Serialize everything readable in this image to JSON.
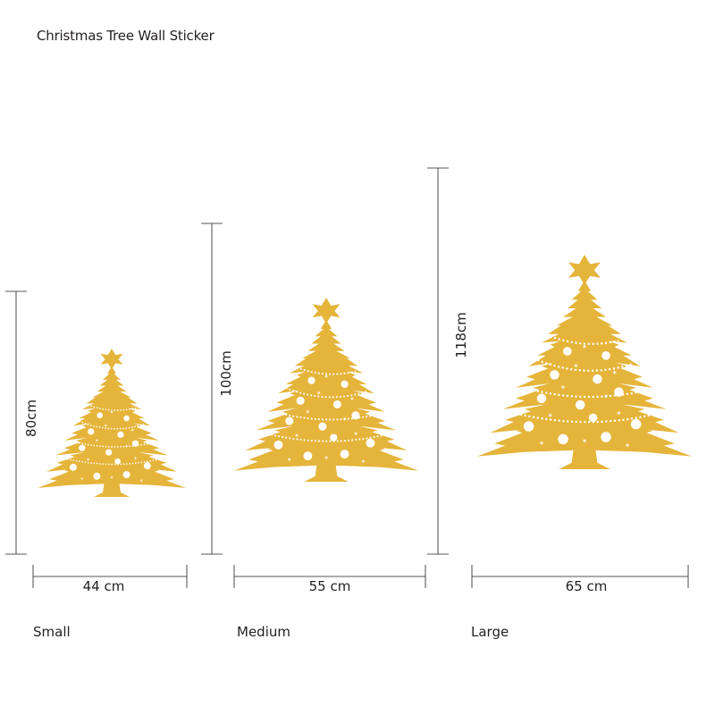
{
  "title": "Christmas Tree Wall Sticker",
  "colors": {
    "tree": "#e5b43a",
    "line": "#231f20",
    "ornament": "#ffffff"
  },
  "sizes": [
    {
      "name": "Small",
      "height": "80cm",
      "width": "44 cm"
    },
    {
      "name": "Medium",
      "height": "100cm",
      "width": "55 cm"
    },
    {
      "name": "Large",
      "height": "118cm",
      "width": "65 cm"
    }
  ]
}
